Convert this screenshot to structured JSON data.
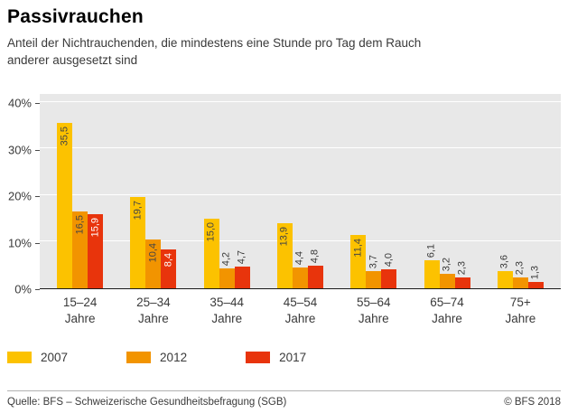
{
  "header": {
    "title": "Passivrauchen",
    "subtitle_line1": "Anteil der Nichtrauchenden, die mindestens eine Stunde pro Tag dem Rauch",
    "subtitle_line2": "anderer ausgesetzt sind"
  },
  "chart_data": {
    "type": "bar",
    "title": "Passivrauchen",
    "subtitle": "Anteil der Nichtrauchenden, die mindestens eine Stunde pro Tag dem Rauch anderer ausgesetzt sind",
    "categories": [
      "15–24 Jahre",
      "25–34 Jahre",
      "35–44 Jahre",
      "45–54 Jahre",
      "55–64 Jahre",
      "65–74 Jahre",
      "75+ Jahre"
    ],
    "series": [
      {
        "name": "2007",
        "color": "#fcc200",
        "value_label_color": "#454545",
        "values": [
          35.5,
          19.7,
          15.0,
          13.9,
          11.4,
          6.1,
          3.6
        ]
      },
      {
        "name": "2012",
        "color": "#f29400",
        "value_label_color": "#454545",
        "values": [
          16.5,
          10.4,
          4.2,
          4.4,
          3.7,
          3.2,
          2.3
        ]
      },
      {
        "name": "2017",
        "color": "#e8340c",
        "value_label_color": "#ffffff",
        "values": [
          15.9,
          8.4,
          4.7,
          4.8,
          4.0,
          2.3,
          1.3
        ]
      }
    ],
    "xlabel": "",
    "ylabel": "",
    "ylim": [
      0,
      40
    ],
    "yticks": [
      0,
      10,
      20,
      30,
      40
    ],
    "ytick_suffix": "%",
    "grid": true,
    "plot_background": "#e8e8e8",
    "gridline_color": "#ffffff",
    "legend_position": "bottom",
    "value_label_decimal": "comma",
    "value_label_inside_min": 8
  },
  "footer": {
    "source": "Quelle: BFS – Schweizerische Gesundheitsbefragung (SGB)",
    "copyright": "© BFS 2018"
  }
}
